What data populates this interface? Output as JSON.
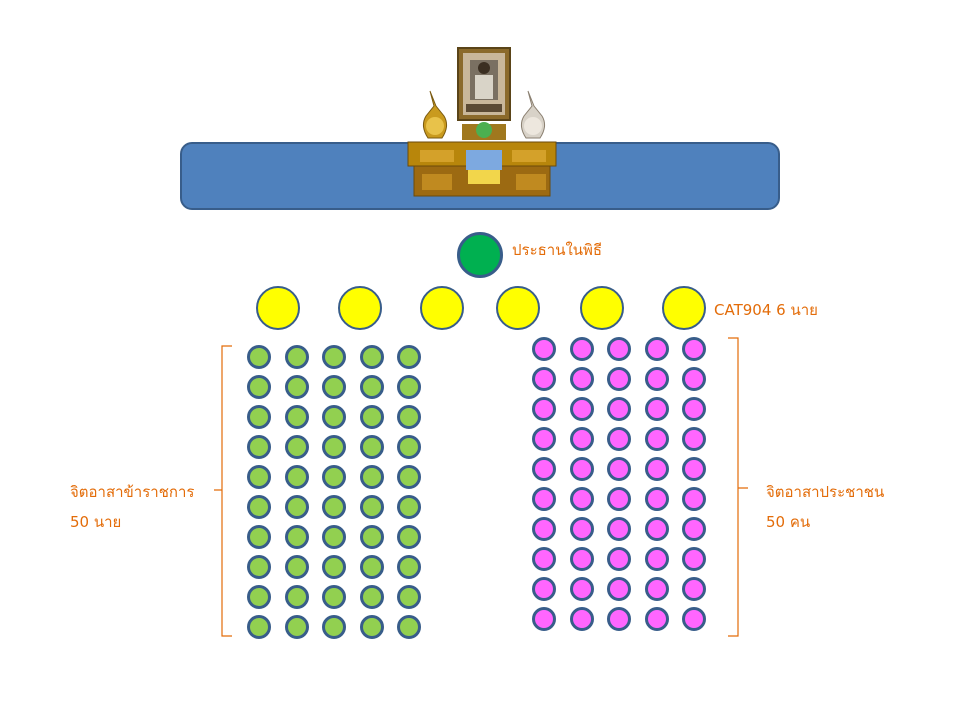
{
  "altar": {
    "icon": "royal-portrait-altar-icon"
  },
  "president": {
    "label": "ประธานในพิธี",
    "color": "#00B050"
  },
  "cat_row": {
    "label": "CAT904 6 นาย",
    "count": 6,
    "color": "#FFFF00"
  },
  "officials_group": {
    "label_line1": "จิตอาสาข้าราชการ",
    "label_line2": "50 นาย",
    "rows": 10,
    "cols": 5,
    "color": "#92D050"
  },
  "public_group": {
    "label_line1": "จิตอาสาประชาชน",
    "label_line2": "50 คน",
    "rows": 10,
    "cols": 5,
    "color": "#FF66FF"
  },
  "colors": {
    "stage": "#4F81BD",
    "outline": "#385D8A",
    "label_text": "#E36C09"
  }
}
